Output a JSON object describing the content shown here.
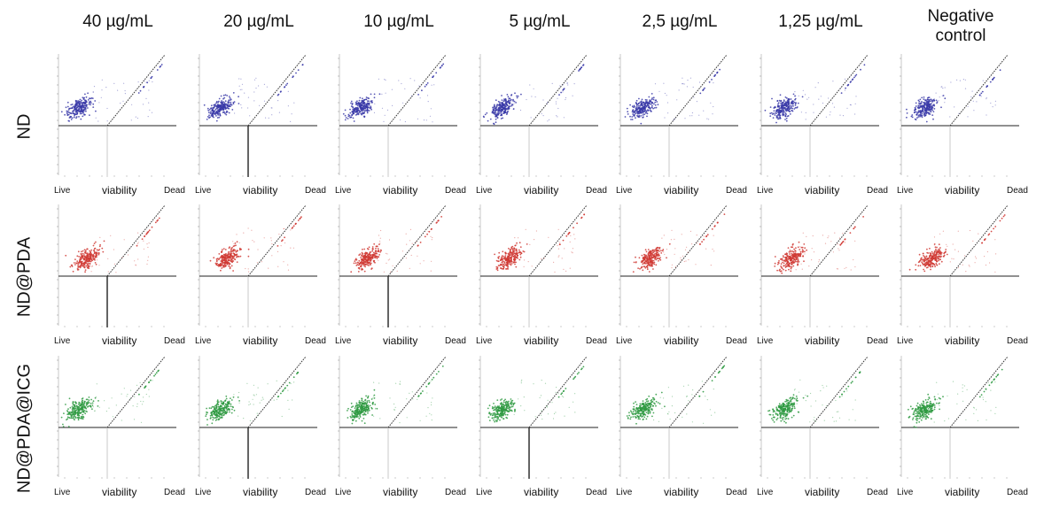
{
  "figure": {
    "columns": [
      "40 µg/mL",
      "20 µg/mL",
      "10 µg/mL",
      "5 µg/mL",
      "2,5 µg/mL",
      "1,25 µg/mL",
      "Negative\ncontrol"
    ],
    "rows": [
      "ND",
      "ND@PDA",
      "ND@PDA@ICG"
    ],
    "x_axis": {
      "left": "Live",
      "center": "viability",
      "right": "Dead"
    },
    "row_colors": {
      "ND": "#3a3aa8",
      "ND@PDA": "#d03a34",
      "ND@PDA@ICG": "#2f9a42"
    }
  },
  "chart_data": {
    "type": "scatter",
    "layout": "grid 3 rows x 7 columns of flow-cytometry viability dot plots",
    "xlabel": "viability",
    "x_ends": [
      "Live",
      "Dead"
    ],
    "columns": [
      "40 µg/mL",
      "20 µg/mL",
      "10 µg/mL",
      "5 µg/mL",
      "2,5 µg/mL",
      "1,25 µg/mL",
      "Negative\ncontrol"
    ],
    "rows": [
      "ND",
      "ND@PDA",
      "ND@PDA@ICG"
    ],
    "series": [
      {
        "name": "ND",
        "color": "#3a3aa8"
      },
      {
        "name": "ND@PDA",
        "color": "#d03a34"
      },
      {
        "name": "ND@PDA@ICG",
        "color": "#2f9a42"
      }
    ],
    "grid": false,
    "legend": "none"
  }
}
